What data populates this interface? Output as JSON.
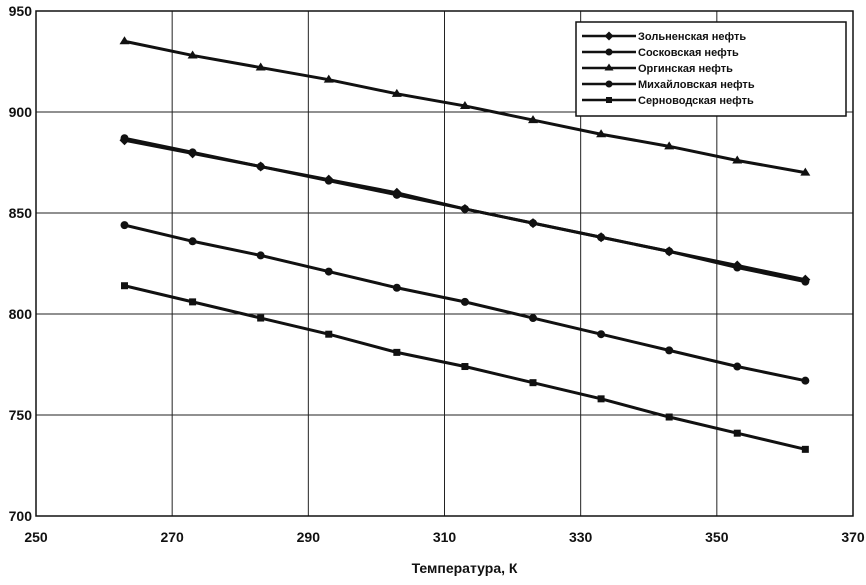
{
  "chart_data": {
    "type": "line",
    "title": "",
    "xlabel": "Температура, К",
    "ylabel": "",
    "xlim": [
      250,
      370
    ],
    "ylim": [
      700,
      950
    ],
    "xticks": [
      250,
      270,
      290,
      310,
      330,
      350,
      370
    ],
    "yticks": [
      700,
      750,
      800,
      850,
      900,
      950
    ],
    "grid": true,
    "legend_position": "top-right",
    "x": [
      263,
      273,
      283,
      293,
      303,
      313,
      323,
      333,
      343,
      353,
      363
    ],
    "series": [
      {
        "name": "Зольненская нефть",
        "marker": "diamond",
        "values": [
          886,
          879.5,
          873,
          866.5,
          860,
          852,
          845,
          838,
          831,
          824,
          817
        ]
      },
      {
        "name": "Сосковская нефть",
        "marker": "circle",
        "values": [
          887,
          880,
          873,
          866,
          859,
          852,
          845,
          838,
          831,
          823,
          816
        ]
      },
      {
        "name": "Оргинская нефть",
        "marker": "triangle",
        "values": [
          935,
          928,
          922,
          916,
          909,
          903,
          896,
          889,
          883,
          876,
          870
        ]
      },
      {
        "name": "Михайловская нефть",
        "marker": "circle",
        "values": [
          844,
          836,
          829,
          821,
          813,
          806,
          798,
          790,
          782,
          774,
          767
        ]
      },
      {
        "name": "Серноводская нефть",
        "marker": "square",
        "values": [
          814,
          806,
          798,
          790,
          781,
          774,
          766,
          758,
          749,
          741,
          733
        ]
      }
    ]
  }
}
